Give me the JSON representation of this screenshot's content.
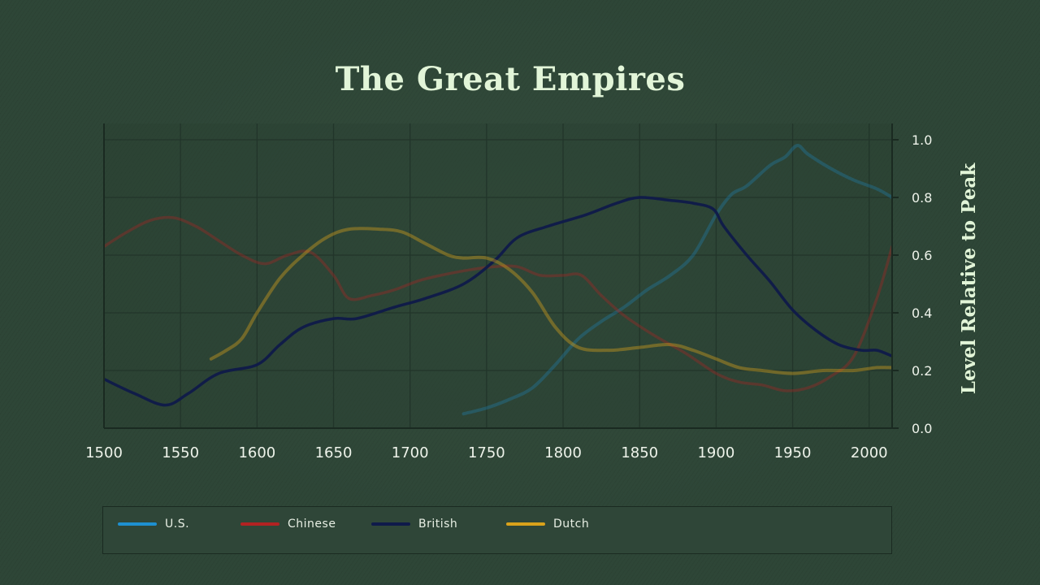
{
  "chart_data": {
    "type": "line",
    "title": "The Great Empires",
    "ylabel": "Level Relative to Peak",
    "xlabel": "",
    "xlim": [
      1500,
      2015
    ],
    "ylim": [
      0,
      1.0
    ],
    "x_ticks": [
      "1500",
      "1550",
      "1600",
      "1650",
      "1700",
      "1750",
      "1800",
      "1850",
      "1900",
      "1950",
      "2000"
    ],
    "y_ticks": [
      "0.0",
      "0.2",
      "0.4",
      "0.6",
      "0.8",
      "1.0"
    ],
    "y_axis_position": "right",
    "grid": true,
    "legend_position": "bottom",
    "series": [
      {
        "name": "U.S.",
        "color": "#1e90d0",
        "x": [
          1735,
          1750,
          1765,
          1780,
          1795,
          1810,
          1825,
          1840,
          1855,
          1870,
          1885,
          1900,
          1910,
          1920,
          1935,
          1945,
          1953,
          1960,
          1975,
          1990,
          2005,
          2015
        ],
        "y": [
          0.05,
          0.07,
          0.1,
          0.14,
          0.22,
          0.31,
          0.37,
          0.42,
          0.48,
          0.53,
          0.6,
          0.74,
          0.81,
          0.84,
          0.91,
          0.94,
          0.98,
          0.95,
          0.9,
          0.86,
          0.83,
          0.8
        ]
      },
      {
        "name": "Chinese",
        "color": "#b22222",
        "x": [
          1500,
          1515,
          1530,
          1545,
          1560,
          1575,
          1590,
          1605,
          1620,
          1635,
          1650,
          1660,
          1675,
          1690,
          1705,
          1720,
          1740,
          1755,
          1770,
          1785,
          1800,
          1812,
          1825,
          1840,
          1860,
          1880,
          1900,
          1915,
          1930,
          1945,
          1960,
          1975,
          1990,
          2005,
          2015
        ],
        "y": [
          0.63,
          0.68,
          0.72,
          0.73,
          0.7,
          0.65,
          0.6,
          0.57,
          0.6,
          0.61,
          0.53,
          0.45,
          0.46,
          0.48,
          0.51,
          0.53,
          0.55,
          0.56,
          0.56,
          0.53,
          0.53,
          0.53,
          0.46,
          0.39,
          0.32,
          0.26,
          0.19,
          0.16,
          0.15,
          0.13,
          0.14,
          0.18,
          0.25,
          0.45,
          0.63
        ]
      },
      {
        "name": "British",
        "color": "#0f1a4a",
        "x": [
          1500,
          1520,
          1540,
          1555,
          1575,
          1600,
          1615,
          1630,
          1650,
          1665,
          1690,
          1710,
          1735,
          1755,
          1770,
          1790,
          1815,
          1835,
          1850,
          1870,
          1885,
          1898,
          1905,
          1920,
          1935,
          1950,
          1965,
          1980,
          1995,
          2005,
          2015
        ],
        "y": [
          0.17,
          0.12,
          0.08,
          0.12,
          0.19,
          0.22,
          0.29,
          0.35,
          0.38,
          0.38,
          0.42,
          0.45,
          0.5,
          0.58,
          0.66,
          0.7,
          0.74,
          0.78,
          0.8,
          0.79,
          0.78,
          0.76,
          0.7,
          0.6,
          0.51,
          0.41,
          0.34,
          0.29,
          0.27,
          0.27,
          0.25
        ]
      },
      {
        "name": "Dutch",
        "color": "#d9a21b",
        "x": [
          1570,
          1580,
          1590,
          1600,
          1615,
          1630,
          1645,
          1660,
          1680,
          1695,
          1710,
          1725,
          1735,
          1750,
          1765,
          1780,
          1795,
          1810,
          1830,
          1850,
          1870,
          1885,
          1900,
          1915,
          1930,
          1950,
          1970,
          1990,
          2005,
          2015
        ],
        "y": [
          0.24,
          0.27,
          0.31,
          0.4,
          0.52,
          0.6,
          0.66,
          0.69,
          0.69,
          0.68,
          0.64,
          0.6,
          0.59,
          0.59,
          0.55,
          0.47,
          0.35,
          0.28,
          0.27,
          0.28,
          0.29,
          0.27,
          0.24,
          0.21,
          0.2,
          0.19,
          0.2,
          0.2,
          0.21,
          0.21
        ]
      }
    ]
  }
}
